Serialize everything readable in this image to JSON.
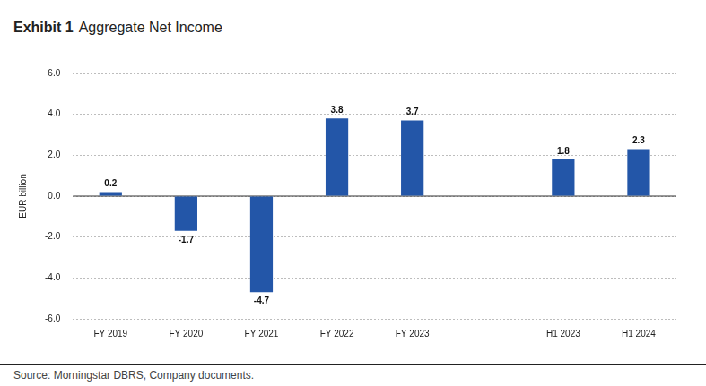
{
  "chart_data": {
    "type": "bar",
    "title": "Exhibit 1",
    "subtitle": "Aggregate Net Income",
    "y_label": "EUR billion",
    "annotations": [
      "Source: Morningstar DBRS, Company documents."
    ],
    "categories": [
      "FY 2019",
      "FY 2020",
      "FY 2021",
      "FY 2022",
      "FY 2023",
      null,
      "H1 2023",
      "H1 2024"
    ],
    "values": [
      0.2,
      -1.7,
      -4.7,
      3.8,
      3.7,
      null,
      1.8,
      2.3
    ],
    "color": "#2356a8",
    "ylim": [
      -6,
      6
    ],
    "yticks": [
      {
        "value": -6,
        "label": "-6.0"
      },
      {
        "value": -4,
        "label": "-4.0"
      },
      {
        "value": -2,
        "label": "-2.0"
      },
      {
        "value": 0,
        "label": "0.0"
      },
      {
        "value": 2,
        "label": "2.0"
      },
      {
        "value": 4,
        "label": "4.0"
      },
      {
        "value": 6,
        "label": "6.0"
      }
    ],
    "grid": true,
    "data_labels": true
  }
}
